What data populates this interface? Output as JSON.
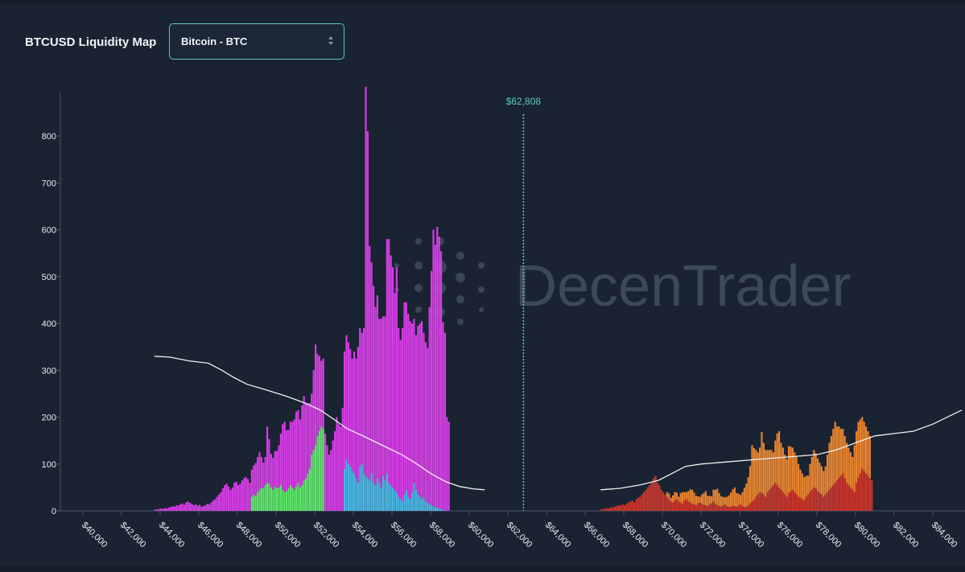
{
  "header": {
    "title": "BTCUSD Liquidity Map",
    "asset_select": {
      "selected": "Bitcoin - BTC"
    }
  },
  "watermark": {
    "text_light": "Decen",
    "text_rest": "Trader"
  },
  "colors": {
    "background": "#1a2332",
    "magenta": "#d63ee6",
    "green": "#5ee86a",
    "blue": "#4bb8e6",
    "red": "#c9352b",
    "orange": "#e8842f",
    "price_line": "#5cc9b8",
    "cumulative_line": "#f0f0f0"
  },
  "chart_data": {
    "type": "bar",
    "title": "",
    "xlabel": "",
    "ylabel": "",
    "xlim": [
      39000,
      86000
    ],
    "ylim": [
      0,
      870
    ],
    "x_ticks": [
      {
        "value": 40000,
        "label": "$40,000"
      },
      {
        "value": 42000,
        "label": "$42,000"
      },
      {
        "value": 44000,
        "label": "$44,000"
      },
      {
        "value": 46000,
        "label": "$46,000"
      },
      {
        "value": 48000,
        "label": "$48,000"
      },
      {
        "value": 50000,
        "label": "$50,000"
      },
      {
        "value": 52000,
        "label": "$52,000"
      },
      {
        "value": 54000,
        "label": "$54,000"
      },
      {
        "value": 56000,
        "label": "$56,000"
      },
      {
        "value": 58000,
        "label": "$58,000"
      },
      {
        "value": 60000,
        "label": "$60,000"
      },
      {
        "value": 62000,
        "label": "$62,000"
      },
      {
        "value": 64000,
        "label": "$64,000"
      },
      {
        "value": 66000,
        "label": "$66,000"
      },
      {
        "value": 68000,
        "label": "$68,000"
      },
      {
        "value": 70000,
        "label": "$70,000"
      },
      {
        "value": 72000,
        "label": "$72,000"
      },
      {
        "value": 74000,
        "label": "$74,000"
      },
      {
        "value": 76000,
        "label": "$76,000"
      },
      {
        "value": 78000,
        "label": "$78,000"
      },
      {
        "value": 80000,
        "label": "$80,000"
      },
      {
        "value": 82000,
        "label": "$82,000"
      },
      {
        "value": 84000,
        "label": "$84,000"
      }
    ],
    "y_ticks": [
      {
        "value": 0,
        "label": "0"
      },
      {
        "value": 100,
        "label": "100"
      },
      {
        "value": 200,
        "label": "200"
      },
      {
        "value": 300,
        "label": "300"
      },
      {
        "value": 400,
        "label": "400"
      },
      {
        "value": 500,
        "label": "500"
      },
      {
        "value": 600,
        "label": "600"
      },
      {
        "value": 700,
        "label": "700"
      },
      {
        "value": 800,
        "label": "800"
      }
    ],
    "current_price": {
      "value": 62808,
      "label": "$62,808"
    },
    "long_liquidations": {
      "bin_width": 100,
      "start": 43700,
      "magenta": [
        3,
        3,
        4,
        5,
        4,
        6,
        5,
        7,
        8,
        10,
        9,
        12,
        11,
        14,
        16,
        13,
        18,
        20,
        17,
        15,
        12,
        14,
        11,
        13,
        9,
        10,
        12,
        15,
        14,
        18,
        22,
        25,
        30,
        35,
        40,
        48,
        55,
        58,
        52,
        45,
        50,
        60,
        62,
        55,
        58,
        65,
        70,
        72,
        68,
        60,
        58,
        62,
        70,
        75,
        80,
        65,
        55,
        60,
        120,
        95,
        72,
        68,
        75,
        80,
        90,
        110,
        140,
        150,
        130,
        125,
        135,
        140,
        150,
        160,
        155,
        145,
        170,
        180,
        160,
        150,
        140,
        130,
        170,
        215,
        175,
        160,
        140,
        150,
        165,
        140,
        120,
        130,
        150,
        170,
        200,
        185,
        180,
        220,
        250,
        265,
        260,
        250,
        240,
        260,
        255,
        290,
        295,
        280,
        310,
        830,
        740,
        500,
        450,
        420,
        380,
        390,
        350,
        360,
        340,
        350,
        500,
        520,
        490,
        470,
        420,
        480,
        360,
        340,
        370,
        410,
        400,
        390,
        380,
        360,
        350,
        330,
        360,
        370,
        380,
        350,
        340,
        330,
        420,
        500,
        590,
        560,
        600,
        580,
        550,
        400,
        380,
        200,
        190
      ],
      "green": [
        0,
        0,
        0,
        0,
        0,
        0,
        0,
        0,
        0,
        0,
        0,
        0,
        0,
        0,
        0,
        0,
        0,
        0,
        0,
        0,
        0,
        0,
        0,
        0,
        0,
        0,
        0,
        0,
        0,
        0,
        0,
        0,
        0,
        0,
        0,
        0,
        0,
        0,
        0,
        0,
        0,
        0,
        0,
        0,
        0,
        0,
        0,
        0,
        0,
        0,
        0,
        0,
        0,
        0,
        0,
        0,
        0,
        0,
        0,
        0,
        0,
        0,
        0,
        0,
        0,
        0,
        0,
        0,
        0,
        0,
        0,
        0,
        0,
        0,
        0,
        0,
        0,
        0,
        0,
        0,
        0,
        0,
        0,
        0,
        0,
        0,
        0,
        0,
        0,
        0,
        0,
        0,
        0,
        0,
        0,
        0,
        0,
        0,
        0,
        0,
        0,
        0,
        0,
        0,
        0,
        0,
        0,
        0,
        0,
        0,
        0,
        0,
        0,
        0,
        0,
        0,
        0,
        0,
        0,
        0,
        0,
        0,
        0,
        0,
        0,
        0,
        0,
        0,
        0,
        0,
        0,
        0,
        0,
        0,
        0,
        0,
        0,
        0,
        0,
        0,
        0,
        0,
        0,
        0,
        0,
        0,
        0,
        0,
        0,
        0,
        0
      ],
      "blue": [
        0,
        0,
        0,
        0,
        0,
        0,
        0,
        0,
        0,
        0,
        0,
        0,
        0,
        0,
        0,
        0,
        0,
        0,
        0,
        0,
        0,
        0,
        0,
        0,
        0,
        0,
        0,
        0,
        0,
        0,
        0,
        0,
        0,
        0,
        0,
        0,
        0,
        0,
        0,
        0,
        0,
        0,
        0,
        0,
        0,
        0,
        0,
        0,
        0,
        0,
        0,
        0,
        0,
        0,
        0,
        0,
        0,
        0,
        0,
        0,
        0,
        0,
        0,
        0,
        0,
        0,
        0,
        0,
        0,
        0,
        0,
        0,
        0,
        0,
        0,
        0,
        0,
        0,
        0,
        0,
        0,
        0,
        0,
        0,
        0,
        0,
        0,
        0,
        0,
        0,
        0,
        0,
        0,
        0,
        0,
        0,
        0,
        0,
        0,
        0,
        0,
        0,
        0,
        0,
        0,
        0,
        0,
        0,
        0,
        0,
        0,
        0,
        0,
        0,
        0,
        0,
        0,
        0,
        0,
        0,
        0,
        0,
        0,
        0,
        0,
        0,
        0,
        0,
        0,
        0,
        0,
        0,
        0,
        0,
        0,
        0,
        0,
        0,
        0,
        0,
        0,
        0,
        0,
        0,
        0,
        0,
        0,
        0,
        0,
        0,
        0
      ]
    },
    "long_green": {
      "start": 48700,
      "values": [
        30,
        35,
        32,
        40,
        45,
        50,
        48,
        55,
        60,
        58,
        50,
        45,
        52,
        48,
        50,
        55,
        45,
        40,
        42,
        48,
        55,
        50,
        45,
        52,
        60,
        50,
        55,
        65,
        70,
        80,
        90,
        120,
        130,
        140,
        160,
        170,
        180,
        175
      ]
    },
    "long_blue": {
      "start": 53500,
      "values": [
        90,
        110,
        100,
        95,
        85,
        80,
        70,
        60,
        95,
        100,
        80,
        75,
        70,
        65,
        80,
        60,
        55,
        70,
        60,
        50,
        75,
        65,
        80,
        60,
        55,
        50,
        45,
        40,
        30,
        25,
        20,
        35,
        45,
        30,
        25,
        40,
        60,
        45,
        35,
        30,
        25,
        30,
        20,
        18,
        15,
        12,
        10,
        8,
        6,
        5,
        4,
        3
      ]
    },
    "short_liquidations": {
      "bin_width": 100,
      "start": 66800,
      "red": [
        3,
        4,
        5,
        6,
        5,
        8,
        7,
        9,
        10,
        12,
        11,
        14,
        12,
        15,
        18,
        20,
        22,
        18,
        25,
        28,
        30,
        35,
        40,
        45,
        50,
        55,
        60,
        70,
        75,
        60,
        55,
        45,
        40,
        35,
        30,
        25,
        20,
        18,
        22,
        25,
        20,
        18,
        15,
        22,
        25,
        20,
        18,
        15,
        14,
        12,
        16,
        18,
        15,
        13,
        12,
        10,
        14,
        16,
        20,
        15,
        12,
        10,
        9,
        12,
        14,
        10,
        8,
        9,
        11,
        10,
        8,
        12,
        14,
        10,
        9,
        8,
        12,
        16,
        20,
        24,
        30,
        35,
        40,
        38,
        35,
        30,
        40,
        45,
        50,
        55,
        60,
        55,
        50,
        45,
        40,
        35,
        30,
        38,
        42,
        45,
        40,
        35,
        30,
        28,
        25,
        22,
        30,
        35,
        40,
        45,
        50,
        48,
        42,
        38,
        35,
        30,
        35,
        40,
        45,
        50,
        55,
        60,
        65,
        70,
        75,
        80,
        70,
        60,
        55,
        50,
        45,
        40,
        60,
        70,
        80,
        90,
        85,
        80,
        75,
        70,
        65
      ],
      "orange": [
        0,
        0,
        0,
        0,
        0,
        0,
        0,
        0,
        0,
        0,
        0,
        0,
        0,
        0,
        0,
        0,
        0,
        0,
        0,
        0,
        0,
        0,
        0,
        0,
        0,
        0,
        0,
        0,
        0,
        0,
        0,
        0,
        0,
        0,
        10,
        12,
        8,
        15,
        18,
        14,
        10,
        20,
        25,
        18,
        15,
        22,
        28,
        30,
        25,
        20,
        15,
        12,
        20,
        25,
        30,
        22,
        18,
        15,
        25,
        30,
        35,
        28,
        22,
        18,
        15,
        20,
        25,
        30,
        35,
        40,
        30,
        25,
        20,
        30,
        40,
        50,
        60,
        80,
        120,
        110,
        100,
        90,
        95,
        130,
        110,
        100,
        90,
        85,
        80,
        70,
        90,
        110,
        120,
        100,
        95,
        85,
        80,
        100,
        95,
        90,
        85,
        80,
        70,
        60,
        55,
        50,
        45,
        40,
        60,
        70,
        80,
        75,
        70,
        65,
        60,
        55,
        60,
        80,
        100,
        110,
        120,
        130,
        115,
        110,
        100,
        95,
        90,
        85,
        80,
        75,
        70,
        100,
        110,
        120,
        115,
        110,
        105,
        100,
        95,
        90
      ]
    },
    "cumulative_long": {
      "points": [
        [
          43700,
          330
        ],
        [
          44500,
          328
        ],
        [
          45500,
          320
        ],
        [
          46500,
          315
        ],
        [
          47200,
          300
        ],
        [
          47800,
          285
        ],
        [
          48500,
          270
        ],
        [
          49500,
          258
        ],
        [
          50500,
          245
        ],
        [
          51500,
          230
        ],
        [
          52300,
          215
        ],
        [
          53000,
          195
        ],
        [
          53700,
          175
        ],
        [
          54500,
          160
        ],
        [
          55500,
          140
        ],
        [
          56500,
          120
        ],
        [
          57300,
          100
        ],
        [
          58000,
          80
        ],
        [
          58800,
          62
        ],
        [
          59500,
          52
        ],
        [
          60200,
          47
        ],
        [
          60800,
          45
        ]
      ]
    },
    "cumulative_short": {
      "points": [
        [
          66800,
          45
        ],
        [
          67800,
          48
        ],
        [
          68800,
          55
        ],
        [
          69800,
          65
        ],
        [
          70500,
          80
        ],
        [
          71200,
          95
        ],
        [
          72000,
          100
        ],
        [
          73500,
          105
        ],
        [
          75000,
          110
        ],
        [
          76500,
          115
        ],
        [
          78000,
          120
        ],
        [
          79000,
          130
        ],
        [
          80000,
          145
        ],
        [
          81000,
          160
        ],
        [
          82000,
          165
        ],
        [
          83000,
          170
        ],
        [
          84000,
          185
        ],
        [
          85000,
          205
        ],
        [
          85500,
          215
        ]
      ]
    }
  }
}
